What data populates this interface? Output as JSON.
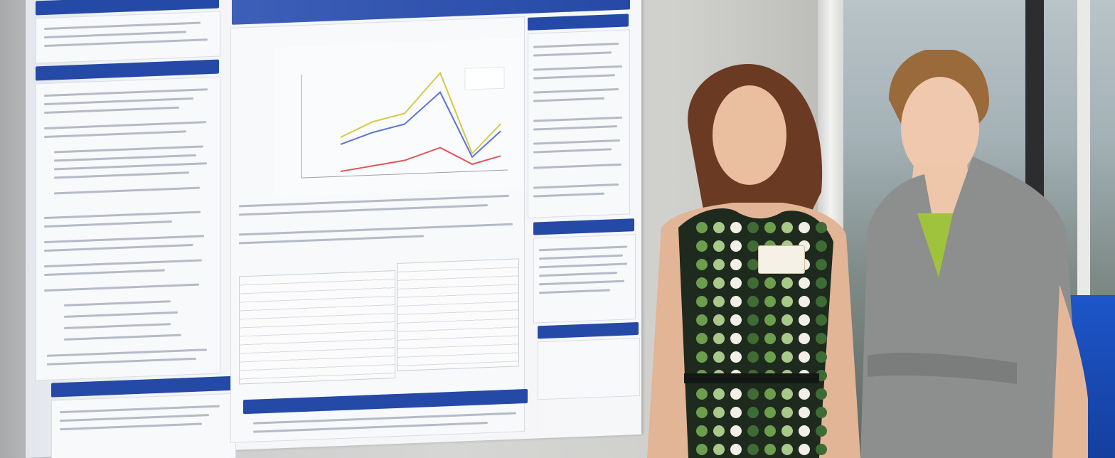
{
  "scene": {
    "colors": {
      "wall": "#d6d6d4",
      "poster_header_blue": "#2549a6",
      "table_cloth_blue": "#1d56c9",
      "dress_green": "#6c9f4d",
      "jacket_gray": "#8a8c8c"
    }
  },
  "poster": {
    "chart_series": [
      "#d7c84a",
      "#5a74d8",
      "#e0565a",
      "#9fcf88"
    ]
  }
}
